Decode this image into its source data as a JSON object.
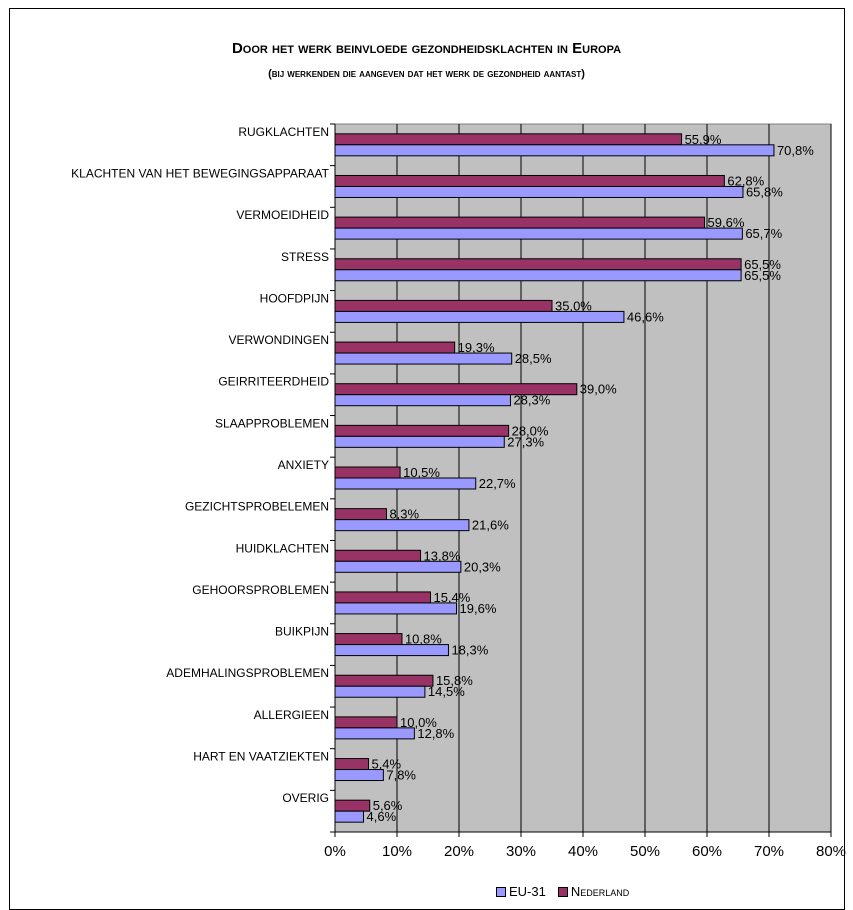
{
  "chart_data": {
    "type": "bar",
    "orientation": "horizontal",
    "title": "Door het werk beinvloede gezondheidsklachten in Europa",
    "subtitle": "(bij werkenden die aangeven dat het werk de gezondheid aantast)",
    "categories": [
      "RUGKLACHTEN",
      "KLACHTEN VAN HET BEWEGINGSAPPARAAT",
      "VERMOEIDHEID",
      "STRESS",
      "HOOFDPIJN",
      "VERWONDINGEN",
      "GEIRRITEERDHEID",
      "SLAAPPROBLEMEN",
      "ANXIETY",
      "GEZICHTSPROBELEMEN",
      "HUIDKLACHTEN",
      "GEHOORSPROBLEMEN",
      "BUIKPIJN",
      "ADEMHALINGSPROBLEMEN",
      "ALLERGIEEN",
      "HART EN VAATZIEKTEN",
      "OVERIG"
    ],
    "series": [
      {
        "name": "EU-31",
        "color": "#9999ff",
        "values": [
          70.8,
          65.8,
          65.7,
          65.5,
          46.6,
          28.5,
          28.3,
          27.3,
          22.7,
          21.6,
          20.3,
          19.6,
          18.3,
          14.5,
          12.8,
          7.8,
          4.6
        ],
        "labels": [
          "70,8%",
          "65,8%",
          "65,7%",
          "65,5%",
          "46,6%",
          "28,5%",
          "28,3%",
          "27,3%",
          "22,7%",
          "21,6%",
          "20,3%",
          "19,6%",
          "18,3%",
          "14,5%",
          "12,8%",
          "7,8%",
          "4,6%"
        ]
      },
      {
        "name": "Nederland",
        "color": "#993366",
        "values": [
          55.9,
          62.8,
          59.6,
          65.5,
          35.0,
          19.3,
          39.0,
          28.0,
          10.5,
          8.3,
          13.8,
          15.4,
          10.8,
          15.8,
          10.0,
          5.4,
          5.6
        ],
        "labels": [
          "55,9%",
          "62,8%",
          "59,6%",
          "65,5%",
          "35,0%",
          "19,3%",
          "39,0%",
          "28,0%",
          "10,5%",
          "8,3%",
          "13,8%",
          "15,4%",
          "10,8%",
          "15,8%",
          "10,0%",
          "5,4%",
          "5,6%"
        ]
      }
    ],
    "xlim": [
      0,
      80
    ],
    "xticks": [
      "0%",
      "10%",
      "20%",
      "30%",
      "40%",
      "50%",
      "60%",
      "70%",
      "80%"
    ],
    "grid": true,
    "plot_background": "#c0c0c0",
    "legend_position": "bottom"
  }
}
